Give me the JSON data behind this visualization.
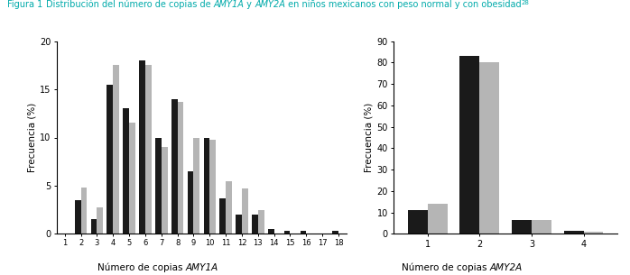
{
  "amy1a_categories": [
    1,
    2,
    3,
    4,
    5,
    6,
    7,
    8,
    9,
    10,
    11,
    12,
    13,
    14,
    15,
    16,
    17,
    18
  ],
  "amy1a_black": [
    0,
    3.5,
    1.5,
    15.5,
    13,
    18,
    10,
    14,
    6.5,
    10,
    3.7,
    2.0,
    2.0,
    0.5,
    0.3,
    0.3,
    0,
    0.3
  ],
  "amy1a_gray": [
    0,
    4.8,
    2.7,
    17.5,
    11.5,
    17.5,
    9,
    13.7,
    10,
    9.8,
    5.5,
    4.7,
    2.5,
    0,
    0,
    0,
    0,
    0
  ],
  "amy2a_categories": [
    1,
    2,
    3,
    4
  ],
  "amy2a_black": [
    11,
    83,
    6.5,
    1.5
  ],
  "amy2a_gray": [
    14,
    80,
    6.5,
    1.0
  ],
  "ylabel": "Frecuencia (%)",
  "ylim1": [
    0,
    20
  ],
  "ylim2": [
    0,
    90
  ],
  "yticks1": [
    0,
    5,
    10,
    15,
    20
  ],
  "yticks2": [
    0,
    10,
    20,
    30,
    40,
    50,
    60,
    70,
    80,
    90
  ],
  "color_black": "#1a1a1a",
  "color_gray": "#b5b5b5",
  "title_color": "#00aaaa",
  "bg_color": "#ffffff",
  "bar_width": 0.38
}
